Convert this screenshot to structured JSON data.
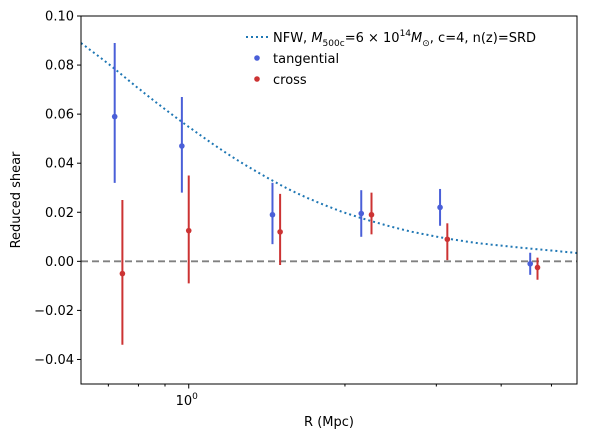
{
  "chart_data": {
    "type": "scatter",
    "xlabel": "R (Mpc)",
    "ylabel": "Reduced shear",
    "xscale": "log",
    "xlim": [
      0.62,
      5.6
    ],
    "ylim": [
      -0.05,
      0.1
    ],
    "grid": false,
    "legend_position": "top-right",
    "y_ticks": [
      {
        "value": -0.04,
        "label": "−0.04"
      },
      {
        "value": -0.02,
        "label": "−0.02"
      },
      {
        "value": 0.0,
        "label": "0.00"
      },
      {
        "value": 0.02,
        "label": "0.02"
      },
      {
        "value": 0.04,
        "label": "0.04"
      },
      {
        "value": 0.06,
        "label": "0.06"
      },
      {
        "value": 0.08,
        "label": "0.08"
      },
      {
        "value": 0.1,
        "label": "0.10"
      }
    ],
    "x_major_ticks": [
      {
        "value": 1.0,
        "base": "10",
        "exponent": "0"
      }
    ],
    "x_minor_ticks": [
      0.7,
      0.8,
      0.9,
      2,
      3,
      4,
      5
    ],
    "reference_line": {
      "y": 0.0,
      "style": "dashed",
      "color": "#808080"
    },
    "model": {
      "name_prefix": "NFW, ",
      "name_sym": "M",
      "name_sub": "500c",
      "name_mid": "=6 × 10",
      "name_exp": "14",
      "name_sym2": "M",
      "name_sub2": "⊙",
      "name_suffix": ", c=4, n(z)=SRD",
      "color": "#1f77b4",
      "style": "dotted",
      "x": [
        0.62,
        0.7,
        0.8,
        0.9,
        1.0,
        1.2,
        1.4,
        1.6,
        1.8,
        2.0,
        2.3,
        2.6,
        3.0,
        3.5,
        4.0,
        4.5,
        5.0,
        5.6
      ],
      "y": [
        0.089,
        0.0805,
        0.0705,
        0.062,
        0.0548,
        0.0432,
        0.0347,
        0.0282,
        0.0235,
        0.0198,
        0.0158,
        0.0128,
        0.0101,
        0.0078,
        0.0064,
        0.0053,
        0.0044,
        0.0034
      ]
    },
    "series": [
      {
        "name": "tangential",
        "color": "#4a5fd8",
        "points": [
          {
            "x": 0.72,
            "y": 0.059,
            "lo": 0.032,
            "hi": 0.089
          },
          {
            "x": 0.97,
            "y": 0.047,
            "lo": 0.028,
            "hi": 0.067
          },
          {
            "x": 1.45,
            "y": 0.019,
            "lo": 0.007,
            "hi": 0.032
          },
          {
            "x": 2.15,
            "y": 0.0195,
            "lo": 0.01,
            "hi": 0.029
          },
          {
            "x": 3.05,
            "y": 0.022,
            "lo": 0.0145,
            "hi": 0.0295
          },
          {
            "x": 4.55,
            "y": -0.001,
            "lo": -0.0055,
            "hi": 0.0035
          }
        ]
      },
      {
        "name": "cross",
        "color": "#cc3333",
        "points": [
          {
            "x": 0.745,
            "y": -0.005,
            "lo": -0.034,
            "hi": 0.025
          },
          {
            "x": 1.0,
            "y": 0.0125,
            "lo": -0.009,
            "hi": 0.035
          },
          {
            "x": 1.5,
            "y": 0.012,
            "lo": -0.0015,
            "hi": 0.0275
          },
          {
            "x": 2.25,
            "y": 0.019,
            "lo": 0.011,
            "hi": 0.028
          },
          {
            "x": 3.15,
            "y": 0.009,
            "lo": 0.0005,
            "hi": 0.0155
          },
          {
            "x": 4.7,
            "y": -0.0025,
            "lo": -0.0075,
            "hi": 0.0015
          }
        ]
      }
    ]
  }
}
